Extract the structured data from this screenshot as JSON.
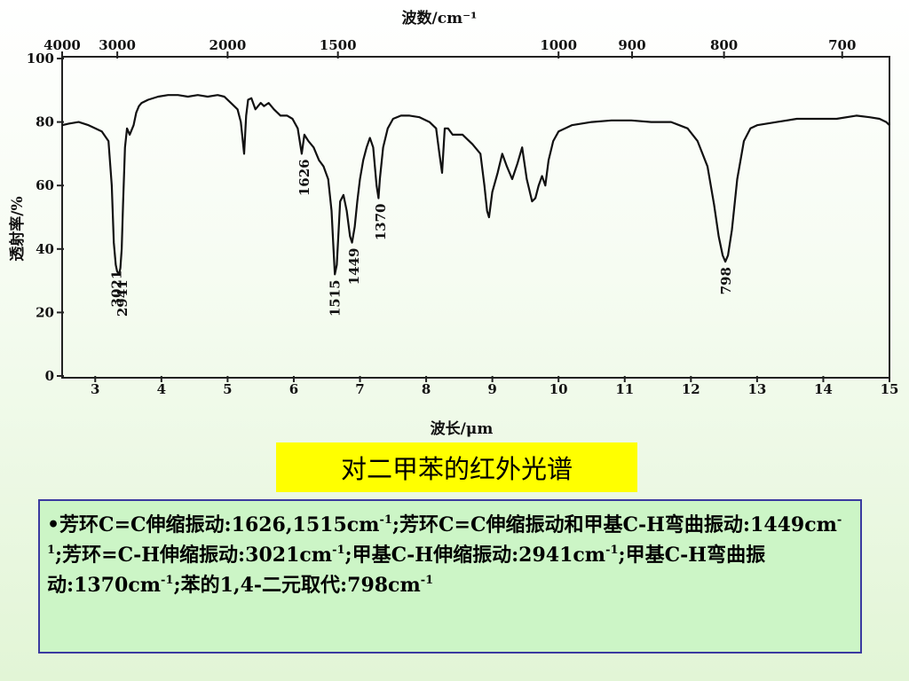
{
  "chart_data": {
    "type": "line",
    "top_axis_title": "波数/cm⁻¹",
    "top_ticks": [
      "4000",
      "3000",
      "2000",
      "1500",
      "1000",
      "900",
      "800",
      "700"
    ],
    "xlabel": "波长/μm",
    "ylabel": "透射率/%",
    "x_ticks": [
      3,
      4,
      5,
      6,
      7,
      8,
      9,
      10,
      11,
      12,
      13,
      14,
      15
    ],
    "y_ticks": [
      0,
      20,
      40,
      60,
      80,
      100
    ],
    "xlim": [
      2.5,
      15
    ],
    "ylim": [
      0,
      100
    ],
    "grid": false,
    "series": [
      {
        "x": [
          2.5,
          2.6,
          2.75,
          2.9,
          3.0,
          3.1,
          3.2,
          3.25,
          3.28,
          3.31,
          3.33,
          3.36,
          3.38,
          3.4,
          3.42,
          3.45,
          3.48,
          3.52,
          3.58,
          3.62,
          3.66,
          3.7,
          3.8,
          3.95,
          4.1,
          4.25,
          4.4,
          4.55,
          4.7,
          4.85,
          4.95,
          5.05,
          5.15,
          5.2,
          5.25,
          5.28,
          5.31,
          5.36,
          5.42,
          5.5,
          5.55,
          5.62,
          5.7,
          5.8,
          5.9,
          5.98,
          6.06,
          6.12,
          6.16,
          6.22,
          6.3,
          6.38,
          6.45,
          6.52,
          6.57,
          6.6,
          6.62,
          6.65,
          6.7,
          6.75,
          6.8,
          6.85,
          6.88,
          6.92,
          6.96,
          7.0,
          7.05,
          7.1,
          7.15,
          7.2,
          7.25,
          7.28,
          7.3,
          7.35,
          7.42,
          7.5,
          7.62,
          7.75,
          7.9,
          8.05,
          8.15,
          8.2,
          8.24,
          8.28,
          8.33,
          8.4,
          8.55,
          8.7,
          8.82,
          8.88,
          8.92,
          8.95,
          9.0,
          9.08,
          9.15,
          9.22,
          9.3,
          9.38,
          9.45,
          9.52,
          9.6,
          9.65,
          9.7,
          9.75,
          9.8,
          9.85,
          9.92,
          10.0,
          10.2,
          10.5,
          10.8,
          11.1,
          11.4,
          11.7,
          11.95,
          12.1,
          12.25,
          12.35,
          12.42,
          12.48,
          12.52,
          12.56,
          12.62,
          12.7,
          12.8,
          12.9,
          13.0,
          13.3,
          13.6,
          13.9,
          14.2,
          14.5,
          14.7,
          14.85,
          14.95,
          15.0
        ],
        "y": [
          79,
          79.5,
          80,
          79,
          78,
          77,
          74,
          60,
          42,
          35,
          33,
          32,
          34,
          40,
          54,
          72,
          78,
          76,
          79,
          83,
          85,
          86,
          87,
          88,
          88.5,
          88.5,
          88,
          88.5,
          88,
          88.5,
          88,
          86,
          84,
          80,
          70,
          82,
          87,
          87.5,
          84,
          86,
          85,
          86,
          84,
          82,
          82,
          81,
          78,
          70,
          76,
          74,
          72,
          68,
          66,
          62,
          52,
          40,
          32,
          35,
          55,
          57,
          52,
          44,
          42,
          47,
          55,
          62,
          68,
          72,
          75,
          72,
          60,
          56,
          62,
          72,
          78,
          81,
          82,
          82,
          81.5,
          80,
          78,
          70,
          64,
          78,
          78,
          76,
          76,
          73,
          70,
          60,
          52,
          50,
          58,
          64,
          70,
          66,
          62,
          67,
          72,
          62,
          55,
          56,
          60,
          63,
          60,
          68,
          74,
          77,
          79,
          80,
          80.5,
          80.5,
          80,
          80,
          78,
          74,
          66,
          54,
          44,
          38,
          36,
          38,
          46,
          62,
          74,
          78,
          79,
          80,
          81,
          81,
          81,
          82,
          81.5,
          81,
          80,
          79
        ]
      }
    ],
    "peak_labels": [
      {
        "label": "3021",
        "x": 3.31,
        "y": 35
      },
      {
        "label": "2941",
        "x": 3.4,
        "y": 32
      },
      {
        "label": "1626",
        "x": 6.15,
        "y": 70
      },
      {
        "label": "1515",
        "x": 6.61,
        "y": 32
      },
      {
        "label": "1449",
        "x": 6.9,
        "y": 42
      },
      {
        "label": "1370",
        "x": 7.3,
        "y": 56
      },
      {
        "label": "798",
        "x": 12.52,
        "y": 36
      }
    ]
  },
  "caption": {
    "text": "对二甲苯的红外光谱",
    "background": "#ffff00"
  },
  "description": {
    "parts": [
      "•芳环C=C伸缩振动:1626,1515cm",
      "-1",
      ";芳环C=C伸缩振动和甲基C-H弯曲振动:1449cm",
      "-1",
      ";芳环=C-H伸缩振动:3021cm",
      "-1",
      ";甲基C-H伸缩振动:2941cm",
      "-1",
      ";甲基C-H弯曲振动:1370cm",
      "-1",
      ";苯的1,4-二元取代:798cm",
      "-1"
    ],
    "border_color": "#3a3aa0",
    "background": "#ccf5c6"
  }
}
